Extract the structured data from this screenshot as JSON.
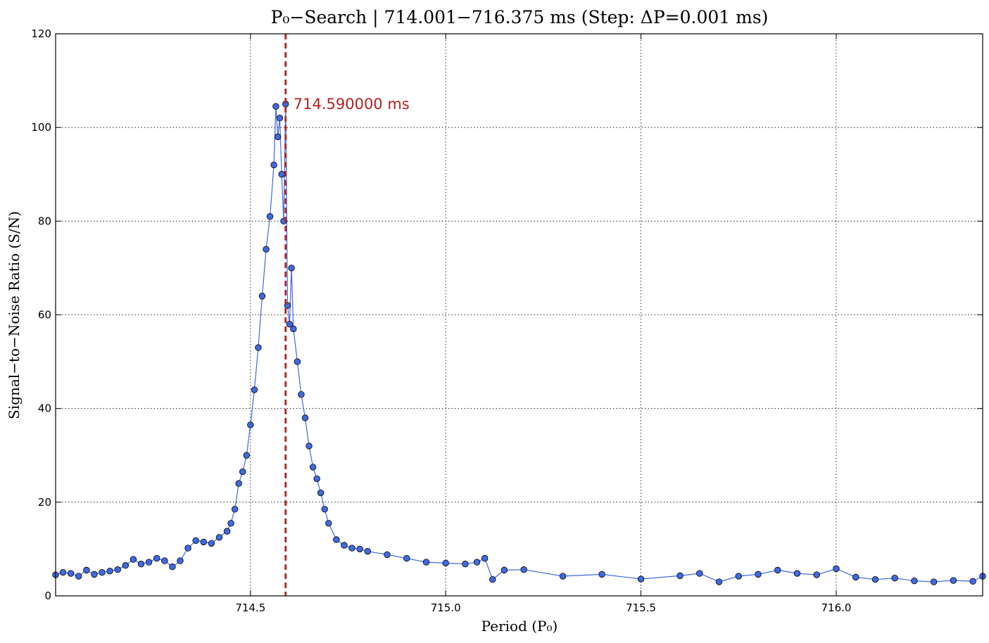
{
  "chart_data": {
    "type": "line",
    "title": "P₀−Search | 714.001−716.375 ms (Step: ΔP=0.001 ms)",
    "xlabel": "Period (P₀)",
    "ylabel": "Signal−to−Noise Ratio (S/N)",
    "xlim": [
      714.001,
      716.375
    ],
    "ylim": [
      0,
      120
    ],
    "xticks": [
      714.5,
      715.0,
      715.5,
      716.0
    ],
    "xtick_labels": [
      "714.5",
      "715.0",
      "715.5",
      "716.0"
    ],
    "yticks": [
      0,
      20,
      40,
      60,
      80,
      100,
      120
    ],
    "ytick_labels": [
      "0",
      "20",
      "40",
      "60",
      "80",
      "100",
      "120"
    ],
    "grid": true,
    "marker": "circle",
    "series": [
      {
        "color": "#4169e1",
        "x": [
          714.001,
          714.02,
          714.04,
          714.06,
          714.08,
          714.1,
          714.12,
          714.14,
          714.16,
          714.18,
          714.2,
          714.22,
          714.24,
          714.26,
          714.28,
          714.3,
          714.32,
          714.34,
          714.36,
          714.38,
          714.4,
          714.42,
          714.44,
          714.45,
          714.46,
          714.47,
          714.48,
          714.49,
          714.5,
          714.51,
          714.52,
          714.53,
          714.54,
          714.55,
          714.56,
          714.565,
          714.57,
          714.575,
          714.58,
          714.585,
          714.59,
          714.595,
          714.6,
          714.605,
          714.61,
          714.62,
          714.63,
          714.64,
          714.65,
          714.66,
          714.67,
          714.68,
          714.69,
          714.7,
          714.72,
          714.74,
          714.76,
          714.78,
          714.8,
          714.85,
          714.9,
          714.95,
          715.0,
          715.05,
          715.08,
          715.1,
          715.12,
          715.15,
          715.2,
          715.3,
          715.4,
          715.5,
          715.6,
          715.65,
          715.7,
          715.75,
          715.8,
          715.85,
          715.9,
          715.95,
          716.0,
          716.05,
          716.1,
          716.15,
          716.2,
          716.25,
          716.3,
          716.35,
          716.375
        ],
        "y": [
          4.5,
          5.0,
          4.8,
          4.2,
          5.5,
          4.6,
          5.0,
          5.3,
          5.6,
          6.5,
          7.8,
          6.8,
          7.2,
          8.0,
          7.5,
          6.2,
          7.5,
          10.2,
          11.8,
          11.5,
          11.2,
          12.5,
          13.8,
          15.5,
          18.5,
          24.0,
          26.5,
          30.0,
          36.5,
          44.0,
          53.0,
          64.0,
          74.0,
          81.0,
          92.0,
          104.5,
          98.0,
          102.0,
          90.0,
          80.0,
          105.0,
          62.0,
          58.0,
          70.0,
          57.0,
          50.0,
          43.0,
          38.0,
          32.0,
          27.5,
          25.0,
          22.0,
          18.5,
          15.5,
          12.0,
          10.8,
          10.2,
          10.0,
          9.5,
          8.8,
          8.0,
          7.2,
          7.0,
          6.8,
          7.2,
          8.0,
          3.5,
          5.5,
          5.6,
          4.2,
          4.6,
          3.6,
          4.3,
          4.8,
          3.0,
          4.2,
          4.6,
          5.5,
          4.8,
          4.5,
          5.8,
          4.0,
          3.5,
          3.8,
          3.2,
          3.0,
          3.3,
          3.1,
          4.2
        ]
      }
    ],
    "annotation": {
      "x": 714.59,
      "label": "714.590000 ms",
      "label_y": 105,
      "color": "#b22222",
      "style": "dashed"
    }
  }
}
